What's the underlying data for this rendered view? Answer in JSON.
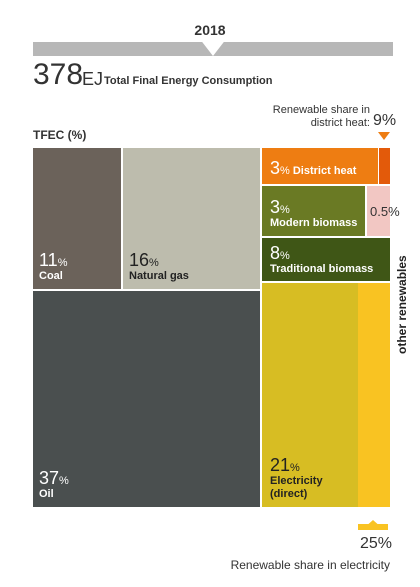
{
  "header": {
    "year": "2018",
    "total_value": "378",
    "total_unit": "EJ",
    "subtitle": "Total Final Energy Consumption"
  },
  "annotations": {
    "district_heat_note": "Renewable share in district heat:",
    "district_heat_value": "9%",
    "tfec_label": "TFEC (%)",
    "other_renewables": "other renewables",
    "other_renewables_value": "0.5%",
    "electricity_note": "Renewable share in electricity",
    "electricity_value": "25%"
  },
  "chart_data": {
    "type": "treemap",
    "title": "",
    "unit": "%",
    "items": [
      {
        "name": "Coal",
        "value": 11,
        "color": "#6b625a"
      },
      {
        "name": "Natural gas",
        "value": 16,
        "color": "#bdbcad"
      },
      {
        "name": "Oil",
        "value": 37,
        "color": "#4a4f4f"
      },
      {
        "name": "District heat",
        "value": 3,
        "color": "#ee7d12"
      },
      {
        "name": "Modern biomass",
        "value": 3,
        "color": "#6a7a24"
      },
      {
        "name": "Traditional biomass",
        "value": 8,
        "color": "#3f5616"
      },
      {
        "name": "Electricity (direct)",
        "value": 21,
        "color": "#d7bd23"
      },
      {
        "name": "other renewables",
        "value": 0.5,
        "color": "#f2c7c3"
      }
    ],
    "renewable_share": {
      "district_heat": 9,
      "electricity": 25
    }
  }
}
